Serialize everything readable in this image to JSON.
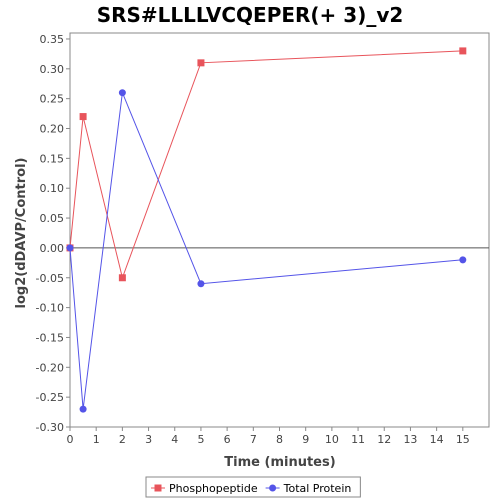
{
  "chart_data": {
    "type": "line",
    "title": "SRS#LLLLVCQEPER(+ 3)_v2",
    "xlabel": "Time (minutes)",
    "ylabel": "log2(dDAVP/Control)",
    "xlim": [
      0,
      16
    ],
    "ylim": [
      -0.3,
      0.36
    ],
    "x_ticks": [
      0,
      1,
      2,
      3,
      4,
      5,
      6,
      7,
      8,
      9,
      10,
      11,
      12,
      13,
      14,
      15
    ],
    "y_ticks": [
      -0.3,
      -0.25,
      -0.2,
      -0.15,
      -0.1,
      -0.05,
      0.0,
      0.05,
      0.1,
      0.15,
      0.2,
      0.25,
      0.3,
      0.35
    ],
    "grid": false,
    "zero_line": true,
    "legend_position": "bottom",
    "series": [
      {
        "name": "Phosphopeptide",
        "color": "#e8545b",
        "marker": "square",
        "x": [
          0,
          0.5,
          2,
          5,
          15
        ],
        "y": [
          0.0,
          0.22,
          -0.05,
          0.31,
          0.33
        ]
      },
      {
        "name": "Total Protein",
        "color": "#5454e8",
        "marker": "circle",
        "x": [
          0,
          0.5,
          2,
          5,
          15
        ],
        "y": [
          0.0,
          -0.27,
          0.26,
          -0.06,
          -0.02
        ]
      }
    ]
  }
}
